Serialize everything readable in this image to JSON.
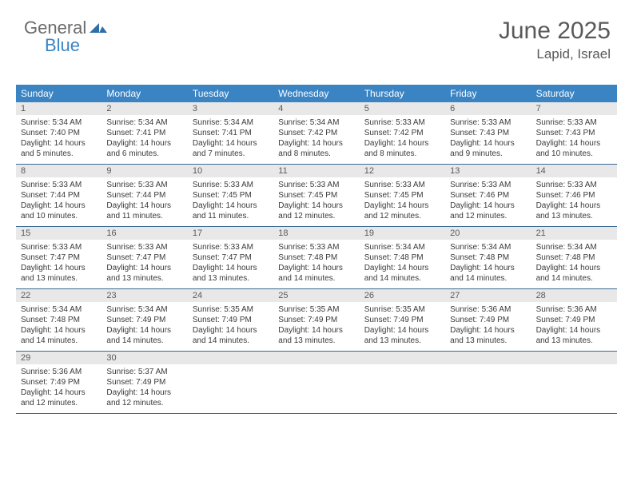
{
  "logo": {
    "general": "General",
    "blue": "Blue"
  },
  "title": "June 2025",
  "location": "Lapid, Israel",
  "colors": {
    "header_bg": "#3b84c4",
    "header_text": "#ffffff",
    "daynum_bg": "#e8e8e8",
    "text": "#3a3a3a",
    "title_color": "#595959",
    "week_divider": "#3b6a93"
  },
  "weekdays": [
    "Sunday",
    "Monday",
    "Tuesday",
    "Wednesday",
    "Thursday",
    "Friday",
    "Saturday"
  ],
  "days": [
    {
      "n": "1",
      "sr": "Sunrise: 5:34 AM",
      "ss": "Sunset: 7:40 PM",
      "d1": "Daylight: 14 hours",
      "d2": "and 5 minutes."
    },
    {
      "n": "2",
      "sr": "Sunrise: 5:34 AM",
      "ss": "Sunset: 7:41 PM",
      "d1": "Daylight: 14 hours",
      "d2": "and 6 minutes."
    },
    {
      "n": "3",
      "sr": "Sunrise: 5:34 AM",
      "ss": "Sunset: 7:41 PM",
      "d1": "Daylight: 14 hours",
      "d2": "and 7 minutes."
    },
    {
      "n": "4",
      "sr": "Sunrise: 5:34 AM",
      "ss": "Sunset: 7:42 PM",
      "d1": "Daylight: 14 hours",
      "d2": "and 8 minutes."
    },
    {
      "n": "5",
      "sr": "Sunrise: 5:33 AM",
      "ss": "Sunset: 7:42 PM",
      "d1": "Daylight: 14 hours",
      "d2": "and 8 minutes."
    },
    {
      "n": "6",
      "sr": "Sunrise: 5:33 AM",
      "ss": "Sunset: 7:43 PM",
      "d1": "Daylight: 14 hours",
      "d2": "and 9 minutes."
    },
    {
      "n": "7",
      "sr": "Sunrise: 5:33 AM",
      "ss": "Sunset: 7:43 PM",
      "d1": "Daylight: 14 hours",
      "d2": "and 10 minutes."
    },
    {
      "n": "8",
      "sr": "Sunrise: 5:33 AM",
      "ss": "Sunset: 7:44 PM",
      "d1": "Daylight: 14 hours",
      "d2": "and 10 minutes."
    },
    {
      "n": "9",
      "sr": "Sunrise: 5:33 AM",
      "ss": "Sunset: 7:44 PM",
      "d1": "Daylight: 14 hours",
      "d2": "and 11 minutes."
    },
    {
      "n": "10",
      "sr": "Sunrise: 5:33 AM",
      "ss": "Sunset: 7:45 PM",
      "d1": "Daylight: 14 hours",
      "d2": "and 11 minutes."
    },
    {
      "n": "11",
      "sr": "Sunrise: 5:33 AM",
      "ss": "Sunset: 7:45 PM",
      "d1": "Daylight: 14 hours",
      "d2": "and 12 minutes."
    },
    {
      "n": "12",
      "sr": "Sunrise: 5:33 AM",
      "ss": "Sunset: 7:45 PM",
      "d1": "Daylight: 14 hours",
      "d2": "and 12 minutes."
    },
    {
      "n": "13",
      "sr": "Sunrise: 5:33 AM",
      "ss": "Sunset: 7:46 PM",
      "d1": "Daylight: 14 hours",
      "d2": "and 12 minutes."
    },
    {
      "n": "14",
      "sr": "Sunrise: 5:33 AM",
      "ss": "Sunset: 7:46 PM",
      "d1": "Daylight: 14 hours",
      "d2": "and 13 minutes."
    },
    {
      "n": "15",
      "sr": "Sunrise: 5:33 AM",
      "ss": "Sunset: 7:47 PM",
      "d1": "Daylight: 14 hours",
      "d2": "and 13 minutes."
    },
    {
      "n": "16",
      "sr": "Sunrise: 5:33 AM",
      "ss": "Sunset: 7:47 PM",
      "d1": "Daylight: 14 hours",
      "d2": "and 13 minutes."
    },
    {
      "n": "17",
      "sr": "Sunrise: 5:33 AM",
      "ss": "Sunset: 7:47 PM",
      "d1": "Daylight: 14 hours",
      "d2": "and 13 minutes."
    },
    {
      "n": "18",
      "sr": "Sunrise: 5:33 AM",
      "ss": "Sunset: 7:48 PM",
      "d1": "Daylight: 14 hours",
      "d2": "and 14 minutes."
    },
    {
      "n": "19",
      "sr": "Sunrise: 5:34 AM",
      "ss": "Sunset: 7:48 PM",
      "d1": "Daylight: 14 hours",
      "d2": "and 14 minutes."
    },
    {
      "n": "20",
      "sr": "Sunrise: 5:34 AM",
      "ss": "Sunset: 7:48 PM",
      "d1": "Daylight: 14 hours",
      "d2": "and 14 minutes."
    },
    {
      "n": "21",
      "sr": "Sunrise: 5:34 AM",
      "ss": "Sunset: 7:48 PM",
      "d1": "Daylight: 14 hours",
      "d2": "and 14 minutes."
    },
    {
      "n": "22",
      "sr": "Sunrise: 5:34 AM",
      "ss": "Sunset: 7:48 PM",
      "d1": "Daylight: 14 hours",
      "d2": "and 14 minutes."
    },
    {
      "n": "23",
      "sr": "Sunrise: 5:34 AM",
      "ss": "Sunset: 7:49 PM",
      "d1": "Daylight: 14 hours",
      "d2": "and 14 minutes."
    },
    {
      "n": "24",
      "sr": "Sunrise: 5:35 AM",
      "ss": "Sunset: 7:49 PM",
      "d1": "Daylight: 14 hours",
      "d2": "and 14 minutes."
    },
    {
      "n": "25",
      "sr": "Sunrise: 5:35 AM",
      "ss": "Sunset: 7:49 PM",
      "d1": "Daylight: 14 hours",
      "d2": "and 13 minutes."
    },
    {
      "n": "26",
      "sr": "Sunrise: 5:35 AM",
      "ss": "Sunset: 7:49 PM",
      "d1": "Daylight: 14 hours",
      "d2": "and 13 minutes."
    },
    {
      "n": "27",
      "sr": "Sunrise: 5:36 AM",
      "ss": "Sunset: 7:49 PM",
      "d1": "Daylight: 14 hours",
      "d2": "and 13 minutes."
    },
    {
      "n": "28",
      "sr": "Sunrise: 5:36 AM",
      "ss": "Sunset: 7:49 PM",
      "d1": "Daylight: 14 hours",
      "d2": "and 13 minutes."
    },
    {
      "n": "29",
      "sr": "Sunrise: 5:36 AM",
      "ss": "Sunset: 7:49 PM",
      "d1": "Daylight: 14 hours",
      "d2": "and 12 minutes."
    },
    {
      "n": "30",
      "sr": "Sunrise: 5:37 AM",
      "ss": "Sunset: 7:49 PM",
      "d1": "Daylight: 14 hours",
      "d2": "and 12 minutes."
    }
  ]
}
